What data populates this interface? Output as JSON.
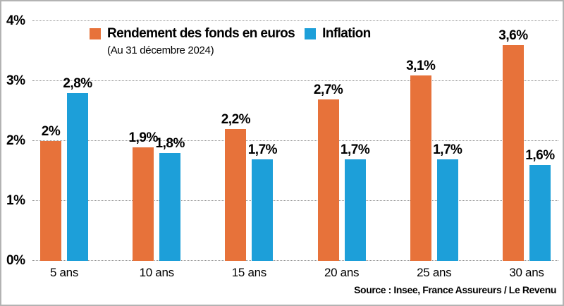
{
  "frame": {
    "background": "#ffffff",
    "border_color": "#b3b3b3"
  },
  "legend": {
    "subtitle": "(Au 31 décembre 2024)"
  },
  "source": "Source : Insee, France Assureurs / Le Revenu",
  "colors": {
    "rendement": "#e7723a",
    "inflation": "#1d9fd9",
    "grid": "#8f8f8f",
    "text": "#000000"
  },
  "chart_data": {
    "type": "bar",
    "categories": [
      "5 ans",
      "10 ans",
      "15 ans",
      "20 ans",
      "25 ans",
      "30 ans"
    ],
    "series": [
      {
        "name": "Rendement des fonds en euros",
        "color": "#e7723a",
        "values": [
          2.0,
          1.9,
          2.2,
          2.7,
          3.1,
          3.6
        ],
        "labels": [
          "2%",
          "1,9%",
          "2,2%",
          "2,7%",
          "3,1%",
          "3,6%"
        ]
      },
      {
        "name": "Inflation",
        "color": "#1d9fd9",
        "values": [
          2.8,
          1.8,
          1.7,
          1.7,
          1.7,
          1.6
        ],
        "labels": [
          "2,8%",
          "1,8%",
          "1,7%",
          "1,7%",
          "1,7%",
          "1,6%"
        ]
      }
    ],
    "xlabel": "",
    "ylabel": "",
    "ylim": [
      0,
      4
    ],
    "yticks": [
      {
        "value": 0,
        "label": "0%"
      },
      {
        "value": 1,
        "label": "1%"
      },
      {
        "value": 2,
        "label": "2%"
      },
      {
        "value": 3,
        "label": "3%"
      },
      {
        "value": 4,
        "label": "4%"
      }
    ],
    "grid": "horizontal-dotted",
    "legend_position": "top-inside"
  }
}
